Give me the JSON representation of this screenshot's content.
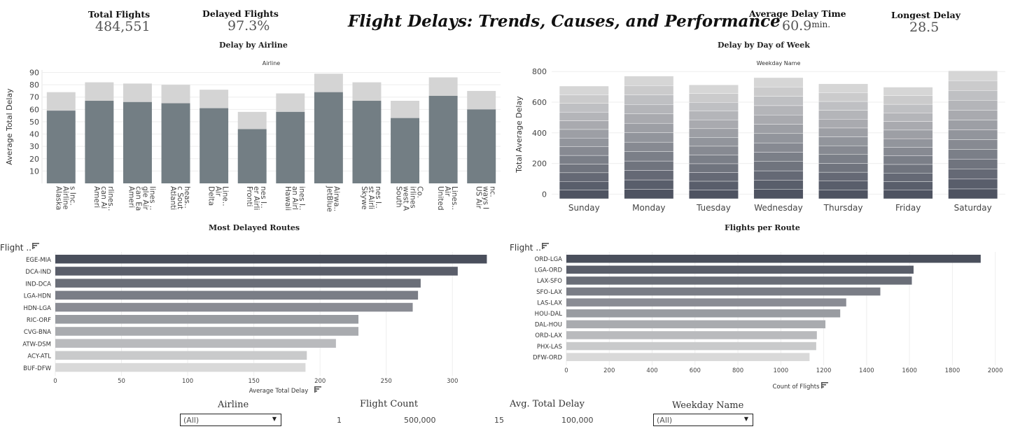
{
  "kpis": {
    "total_flights_label": "Total Flights",
    "total_flights_value": "484,551",
    "delayed_flights_label": "Delayed Flights",
    "delayed_flights_value": "97.3%",
    "avg_delay_label": "Average Delay Time",
    "avg_delay_value": "60.9",
    "avg_delay_unit": "min.",
    "longest_delay_label": "Longest Delay",
    "longest_delay_value": "28.5"
  },
  "dashboard_title": "Flight Delays: Trends, Causes, and Performance",
  "filters": {
    "airline_label": "Airline",
    "airline_value": "(All)",
    "flight_count_label": "Flight Count",
    "flight_count_min": "1",
    "flight_count_max": "500,000",
    "avg_total_delay_label": "Avg. Total Delay",
    "avg_total_delay_min": "15",
    "avg_total_delay_max": "100,000",
    "weekday_label": "Weekday Name",
    "weekday_value": "(All)"
  },
  "colors": {
    "bar_dark": "#737e84",
    "bar_light": "#d4d4d4",
    "rank_dark": "#4a4f5c",
    "rank_light": "#d9d9d9"
  },
  "chart_data": [
    {
      "id": "delay_by_airline",
      "type": "bar",
      "title": "Delay by Airline",
      "header": "Airline",
      "ylabel": "Average Total Delay",
      "ylim": [
        0,
        92
      ],
      "yticks": [
        10,
        20,
        30,
        40,
        50,
        60,
        70,
        80,
        90
      ],
      "categories": [
        "Alaska Airlines Inc.",
        "American Airlines..",
        "American Eagle Airlines ..",
        "Atlantic Southeas..",
        "Delta Air Line..",
        "Frontier Airlines I..",
        "Hawaiian Airlines I..",
        "JetBlue Airwa..",
        "Skywest Airlines I..",
        "Southwest Airlines Co.",
        "United Air Lines..",
        "US Airways Inc."
      ],
      "category_lines": [
        [
          "Alaska",
          "Airline",
          "s Inc."
        ],
        [
          "Ameri",
          "can Ai",
          "rlines.."
        ],
        [
          "Ameri",
          "can Ea",
          "gle Air",
          "lines .."
        ],
        [
          "Atlanti",
          "c Sout",
          "heas.."
        ],
        [
          "Delta",
          "Air",
          "Line.."
        ],
        [
          "Fronti",
          "er Airli",
          "nes I.."
        ],
        [
          "Hawaii",
          "an Airl",
          "ines I.."
        ],
        [
          "JetBlue",
          "Airwa.."
        ],
        [
          "Skywe",
          "st Airli",
          "nes I.."
        ],
        [
          "South",
          "west A",
          "irlines",
          "Co."
        ],
        [
          "United",
          "Air",
          "Lines.."
        ],
        [
          "US Air",
          "ways I",
          "nc."
        ]
      ],
      "series": [
        {
          "values": [
            59,
            67,
            66,
            65,
            61,
            44,
            58,
            74,
            67,
            53,
            71,
            60
          ]
        },
        {
          "values": [
            74,
            82,
            81,
            80,
            76,
            58,
            73,
            89,
            82,
            67,
            86,
            75
          ]
        }
      ]
    },
    {
      "id": "delay_by_day",
      "type": "bar",
      "title": "Delay by Day of Week",
      "header": "Weekday Name",
      "ylabel": "Total Average Delay",
      "ylim": [
        -30,
        810
      ],
      "yticks": [
        0,
        200,
        400,
        600,
        800
      ],
      "categories": [
        "Sunday",
        "Monday",
        "Tuesday",
        "Wednesday",
        "Thursday",
        "Friday",
        "Saturday"
      ],
      "totals": [
        705,
        770,
        713,
        760,
        720,
        698,
        805
      ],
      "segments": 13
    },
    {
      "id": "most_delayed_routes",
      "type": "bar",
      "orientation": "horizontal",
      "title": "Most Delayed Routes",
      "header": "Flight ..",
      "xlabel": "Average Total Delay",
      "xlim": [
        0,
        330
      ],
      "xticks": [
        0,
        50,
        100,
        150,
        200,
        250,
        300
      ],
      "categories": [
        "EGE-MIA",
        "DCA-IND",
        "IND-DCA",
        "LGA-HDN",
        "HDN-LGA",
        "RIC-ORF",
        "CVG-BNA",
        "ATW-DSM",
        "ACY-ATL",
        "BUF-DFW"
      ],
      "values": [
        326,
        304,
        276,
        274,
        270,
        229,
        229,
        212,
        190,
        189
      ]
    },
    {
      "id": "flights_per_route",
      "type": "bar",
      "orientation": "horizontal",
      "title": "Flights per Route",
      "header": "Flight ..",
      "xlabel": "Count of Flights",
      "xlim": [
        0,
        2050
      ],
      "xticks": [
        0,
        200,
        400,
        600,
        800,
        1000,
        1200,
        1400,
        1600,
        1800,
        2000
      ],
      "categories": [
        "ORD-LGA",
        "LGA-ORD",
        "LAX-SFO",
        "SFO-LAX",
        "LAS-LAX",
        "HOU-DAL",
        "DAL-HOU",
        "ORD-LAX",
        "PHX-LAS",
        "DFW-ORD"
      ],
      "values": [
        1932,
        1619,
        1611,
        1464,
        1305,
        1277,
        1208,
        1168,
        1165,
        1134
      ]
    }
  ]
}
